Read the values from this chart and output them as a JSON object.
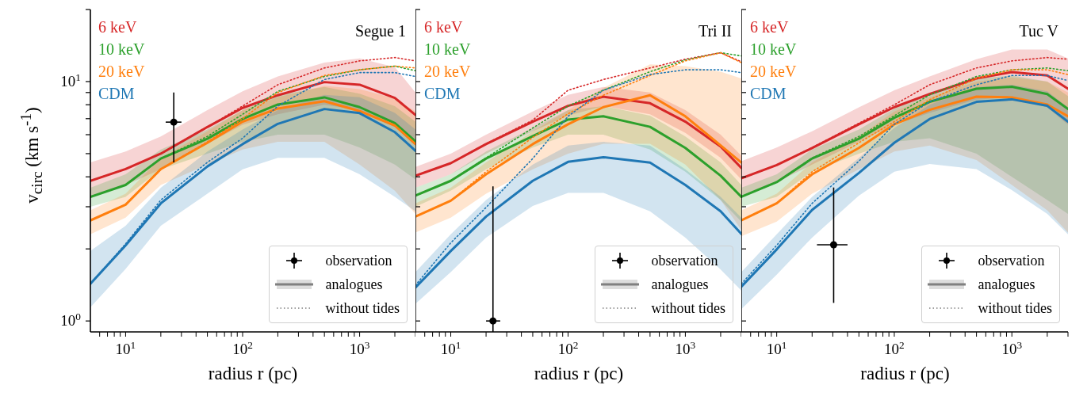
{
  "chart_data": [
    {
      "type": "line",
      "title": "Segue 1",
      "xlabel": "radius r (pc)",
      "ylabel": "v$_{circ}$ (km s$^{-1}$)",
      "log": "xy",
      "legend": "bottom right",
      "annotations": [
        "analogues",
        "without tides"
      ],
      "xlim": [
        5,
        3000
      ],
      "ylim": [
        0.9,
        20
      ],
      "xticks": [
        {
          "value": 6,
          "label": null
        },
        {
          "value": 7,
          "label": null
        },
        {
          "value": 8,
          "label": null
        },
        {
          "value": 9,
          "label": null
        },
        {
          "value": 10,
          "label": "10$^{1}$"
        },
        {
          "value": 20,
          "label": null
        },
        {
          "value": 30,
          "label": null
        },
        {
          "value": 40,
          "label": null
        },
        {
          "value": 50,
          "label": null
        },
        {
          "value": 60,
          "label": null
        },
        {
          "value": 70,
          "label": null
        },
        {
          "value": 80,
          "label": null
        },
        {
          "value": 90,
          "label": null
        },
        {
          "value": 100,
          "label": "10$^{2}$"
        },
        {
          "value": 200,
          "label": null
        },
        {
          "value": 300,
          "label": null
        },
        {
          "value": 400,
          "label": null
        },
        {
          "value": 500,
          "label": null
        },
        {
          "value": 600,
          "label": null
        },
        {
          "value": 700,
          "label": null
        },
        {
          "value": 800,
          "label": null
        },
        {
          "value": 900,
          "label": null
        },
        {
          "value": 1000,
          "label": "10$^{3}$"
        },
        {
          "value": 2000,
          "label": null
        },
        {
          "value": 3000,
          "label": null
        }
      ],
      "yticks": [
        {
          "value": 1,
          "label": "10$^{0}$"
        },
        {
          "value": 2,
          "label": null
        },
        {
          "value": 3,
          "label": null
        },
        {
          "value": 4,
          "label": null
        },
        {
          "value": 5,
          "label": null
        },
        {
          "value": 6,
          "label": null
        },
        {
          "value": 7,
          "label": null
        },
        {
          "value": 8,
          "label": null
        },
        {
          "value": 9,
          "label": null
        },
        {
          "value": 10,
          "label": "10$^{1}$"
        },
        {
          "value": 20,
          "label": null
        }
      ],
      "x": [
        5,
        10,
        20,
        50,
        100,
        200,
        500,
        1000,
        2000,
        3000
      ],
      "series": [
        {
          "name": "6 keV",
          "color": "#d62728",
          "values": [
            3.85,
            4.31,
            5.0,
            6.46,
            7.76,
            8.77,
            9.95,
            9.7,
            8.55,
            7.25
          ],
          "lower": [
            3.3,
            3.7,
            4.3,
            5.5,
            6.6,
            7.3,
            8.0,
            7.6,
            6.5,
            5.4
          ],
          "upper": [
            4.6,
            5.1,
            5.9,
            7.6,
            9.1,
            10.5,
            12.0,
            12.5,
            11.5,
            9.0
          ]
        },
        {
          "name": "10 keV",
          "color": "#2ca02c",
          "values": [
            3.3,
            3.7,
            4.77,
            5.77,
            6.98,
            8.02,
            8.59,
            7.82,
            6.71,
            5.62
          ],
          "lower": [
            3.0,
            3.3,
            4.3,
            5.0,
            5.6,
            6.0,
            6.0,
            5.3,
            4.5,
            3.9
          ],
          "upper": [
            3.6,
            4.1,
            5.2,
            6.3,
            7.6,
            8.8,
            9.5,
            8.9,
            7.9,
            6.8
          ]
        },
        {
          "name": "20 keV",
          "color": "#ff7f0e",
          "values": [
            2.63,
            3.06,
            4.31,
            5.55,
            6.8,
            7.72,
            8.28,
            7.53,
            6.55,
            5.48
          ],
          "lower": [
            2.3,
            2.7,
            3.7,
            4.5,
            5.2,
            5.6,
            5.6,
            4.5,
            3.5,
            2.8
          ],
          "upper": [
            2.9,
            3.4,
            4.8,
            6.2,
            7.6,
            8.6,
            9.6,
            9.3,
            8.5,
            7.5
          ]
        },
        {
          "name": "CDM",
          "color": "#1f77b4",
          "values": [
            1.43,
            2.07,
            3.1,
            4.42,
            5.48,
            6.66,
            7.68,
            7.38,
            6.15,
            5.14
          ],
          "lower": [
            1.14,
            1.65,
            2.5,
            3.4,
            4.3,
            4.8,
            4.8,
            4.1,
            3.3,
            2.87
          ],
          "upper": [
            1.96,
            2.5,
            3.6,
            5.1,
            6.3,
            7.6,
            8.8,
            8.6,
            7.4,
            6.3
          ]
        },
        {
          "line_style": "dotted",
          "color": "#d62728",
          "values": [
            3.85,
            4.31,
            5.0,
            6.46,
            7.9,
            9.7,
            11.4,
            12.2,
            12.6,
            12.2
          ]
        },
        {
          "line_style": "dotted",
          "color": "#2ca02c",
          "values": [
            3.3,
            3.7,
            4.77,
            5.9,
            7.3,
            9.1,
            10.5,
            11.2,
            11.6,
            11.1
          ]
        },
        {
          "line_style": "dotted",
          "color": "#ff7f0e",
          "values": [
            2.63,
            3.06,
            4.31,
            5.6,
            7.0,
            9.0,
            10.6,
            11.2,
            11.6,
            11.4
          ]
        },
        {
          "line_style": "dotted",
          "color": "#1f77b4",
          "values": [
            1.43,
            2.1,
            3.2,
            4.6,
            5.8,
            7.9,
            10.2,
            10.9,
            10.9,
            10.5
          ]
        },
        {
          "type": "scatter",
          "name": "observation",
          "color": "#000000",
          "marker": "circle",
          "x": [
            25.8
          ],
          "values": [
            6.77
          ],
          "errors": [
            [
              4.6,
              9.0
            ]
          ],
          "xerrors": [
            [
              22,
              30
            ]
          ]
        }
      ]
    },
    {
      "type": "line",
      "title": "Tri II",
      "xlabel": "radius r (pc)",
      "log": "xy",
      "legend": "bottom right",
      "tick_labels": "x",
      "annotations": [
        "analogues",
        "without tides"
      ],
      "xlim": [
        5,
        3000
      ],
      "ylim": [
        0.9,
        20
      ],
      "xticks": [
        {
          "value": 6,
          "label": null
        },
        {
          "value": 7,
          "label": null
        },
        {
          "value": 8,
          "label": null
        },
        {
          "value": 9,
          "label": null
        },
        {
          "value": 10,
          "label": "10$^{1}$"
        },
        {
          "value": 20,
          "label": null
        },
        {
          "value": 30,
          "label": null
        },
        {
          "value": 40,
          "label": null
        },
        {
          "value": 50,
          "label": null
        },
        {
          "value": 60,
          "label": null
        },
        {
          "value": 70,
          "label": null
        },
        {
          "value": 80,
          "label": null
        },
        {
          "value": 90,
          "label": null
        },
        {
          "value": 100,
          "label": "10$^{2}$"
        },
        {
          "value": 200,
          "label": null
        },
        {
          "value": 300,
          "label": null
        },
        {
          "value": 400,
          "label": null
        },
        {
          "value": 500,
          "label": null
        },
        {
          "value": 600,
          "label": null
        },
        {
          "value": 700,
          "label": null
        },
        {
          "value": 800,
          "label": null
        },
        {
          "value": 900,
          "label": null
        },
        {
          "value": 1000,
          "label": "10$^{3}$"
        },
        {
          "value": 2000,
          "label": null
        },
        {
          "value": 3000,
          "label": null
        }
      ],
      "yticks": [
        {
          "value": 1,
          "label": null
        },
        {
          "value": 2,
          "label": null
        },
        {
          "value": 3,
          "label": null
        },
        {
          "value": 4,
          "label": null
        },
        {
          "value": 5,
          "label": null
        },
        {
          "value": 6,
          "label": null
        },
        {
          "value": 7,
          "label": null
        },
        {
          "value": 8,
          "label": null
        },
        {
          "value": 9,
          "label": null
        },
        {
          "value": 10,
          "label": null
        },
        {
          "value": 20,
          "label": null
        }
      ],
      "x": [
        5,
        10,
        20,
        50,
        100,
        200,
        500,
        1000,
        2000,
        3000
      ],
      "series": [
        {
          "name": "6 keV",
          "color": "#d62728",
          "values": [
            4.04,
            4.56,
            5.48,
            6.8,
            7.92,
            8.65,
            8.12,
            6.8,
            5.35,
            4.36
          ],
          "lower": [
            3.6,
            4.1,
            5.0,
            6.2,
            7.2,
            7.9,
            7.3,
            6.1,
            4.8,
            3.9
          ],
          "upper": [
            4.4,
            5.0,
            6.0,
            7.5,
            8.8,
            9.5,
            9.0,
            7.6,
            6.0,
            4.9
          ]
        },
        {
          "name": "10 keV",
          "color": "#2ca02c",
          "values": [
            3.34,
            3.85,
            4.77,
            5.92,
            6.94,
            7.16,
            6.47,
            5.28,
            4.04,
            3.3
          ],
          "lower": [
            3.0,
            3.5,
            4.3,
            5.3,
            6.0,
            6.0,
            5.2,
            4.2,
            3.2,
            2.6
          ],
          "upper": [
            3.6,
            4.1,
            5.1,
            6.4,
            7.6,
            7.9,
            7.2,
            5.9,
            4.6,
            3.7
          ]
        },
        {
          "name": "20 keV",
          "color": "#ff7f0e",
          "values": [
            2.73,
            3.18,
            4.1,
            5.48,
            6.63,
            7.82,
            8.77,
            7.16,
            5.41,
            4.59
          ],
          "lower": [
            2.34,
            2.7,
            3.4,
            4.3,
            5.0,
            5.5,
            5.5,
            4.5,
            3.2,
            2.4
          ],
          "upper": [
            3.1,
            3.6,
            4.6,
            6.2,
            7.6,
            9.4,
            11.8,
            11.6,
            11.0,
            10.3
          ]
        },
        {
          "name": "CDM",
          "color": "#1f77b4",
          "values": [
            1.38,
            1.96,
            2.73,
            3.85,
            4.62,
            4.83,
            4.59,
            3.7,
            2.87,
            2.31
          ],
          "lower": [
            1.18,
            1.6,
            2.23,
            3.02,
            3.43,
            3.43,
            2.87,
            2.23,
            1.64,
            1.34
          ],
          "upper": [
            1.6,
            2.3,
            3.2,
            4.5,
            5.4,
            5.6,
            5.4,
            4.3,
            3.3,
            2.7
          ]
        },
        {
          "line_style": "dotted",
          "color": "#d62728",
          "values": [
            4.04,
            4.56,
            5.5,
            6.9,
            9.2,
            10.2,
            11.4,
            12.4,
            13.2,
            12.1
          ]
        },
        {
          "line_style": "dotted",
          "color": "#2ca02c",
          "values": [
            3.34,
            3.85,
            4.8,
            6.4,
            7.9,
            9.2,
            11.0,
            12.3,
            13.2,
            12.8
          ]
        },
        {
          "line_style": "dotted",
          "color": "#ff7f0e",
          "values": [
            2.73,
            3.18,
            4.2,
            5.84,
            7.34,
            8.77,
            10.6,
            12.2,
            13.2,
            12.0
          ]
        },
        {
          "line_style": "dotted",
          "color": "#1f77b4",
          "values": [
            1.41,
            2.12,
            2.98,
            4.77,
            7.16,
            9.2,
            10.7,
            11.2,
            11.2,
            10.9
          ]
        },
        {
          "type": "scatter",
          "name": "observation",
          "color": "#000000",
          "marker": "circle",
          "x": [
            22.9
          ],
          "values": [
            1.0
          ],
          "errors": [
            [
              0.9,
              3.65
            ]
          ],
          "xerrors": [
            [
              20,
              26.4
            ]
          ]
        }
      ]
    },
    {
      "type": "line",
      "title": "Tuc V",
      "xlabel": "radius r (pc)",
      "log": "xy",
      "legend": "bottom right",
      "tick_labels": "x",
      "annotations": [
        "analogues",
        "without tides"
      ],
      "xlim": [
        5,
        3000
      ],
      "ylim": [
        0.9,
        20
      ],
      "xticks": [
        {
          "value": 6,
          "label": null
        },
        {
          "value": 7,
          "label": null
        },
        {
          "value": 8,
          "label": null
        },
        {
          "value": 9,
          "label": null
        },
        {
          "value": 10,
          "label": "10$^{1}$"
        },
        {
          "value": 20,
          "label": null
        },
        {
          "value": 30,
          "label": null
        },
        {
          "value": 40,
          "label": null
        },
        {
          "value": 50,
          "label": null
        },
        {
          "value": 60,
          "label": null
        },
        {
          "value": 70,
          "label": null
        },
        {
          "value": 80,
          "label": null
        },
        {
          "value": 90,
          "label": null
        },
        {
          "value": 100,
          "label": "10$^{2}$"
        },
        {
          "value": 200,
          "label": null
        },
        {
          "value": 300,
          "label": null
        },
        {
          "value": 400,
          "label": null
        },
        {
          "value": 500,
          "label": null
        },
        {
          "value": 600,
          "label": null
        },
        {
          "value": 700,
          "label": null
        },
        {
          "value": 800,
          "label": null
        },
        {
          "value": 900,
          "label": null
        },
        {
          "value": 1000,
          "label": "10$^{3}$"
        },
        {
          "value": 2000,
          "label": null
        },
        {
          "value": 3000,
          "label": null
        }
      ],
      "yticks": [
        {
          "value": 1,
          "label": null
        },
        {
          "value": 2,
          "label": null
        },
        {
          "value": 3,
          "label": null
        },
        {
          "value": 4,
          "label": null
        },
        {
          "value": 5,
          "label": null
        },
        {
          "value": 6,
          "label": null
        },
        {
          "value": 7,
          "label": null
        },
        {
          "value": 8,
          "label": null
        },
        {
          "value": 9,
          "label": null
        },
        {
          "value": 10,
          "label": null
        },
        {
          "value": 20,
          "label": null
        }
      ],
      "x": [
        5,
        10,
        20,
        50,
        100,
        200,
        500,
        1000,
        2000,
        3000
      ],
      "series": [
        {
          "name": "6 keV",
          "color": "#d62728",
          "values": [
            3.94,
            4.48,
            5.28,
            6.63,
            7.82,
            8.87,
            10.3,
            10.96,
            10.6,
            9.34
          ],
          "lower": [
            3.35,
            3.8,
            4.5,
            5.6,
            6.6,
            7.4,
            8.4,
            8.6,
            7.8,
            6.6
          ],
          "upper": [
            4.65,
            5.3,
            6.2,
            7.8,
            9.2,
            10.5,
            12.4,
            13.6,
            13.6,
            12.5
          ]
        },
        {
          "name": "10 keV",
          "color": "#2ca02c",
          "values": [
            3.3,
            3.8,
            4.77,
            5.77,
            7.06,
            8.23,
            9.34,
            9.51,
            8.87,
            7.68
          ],
          "lower": [
            3.0,
            3.3,
            4.2,
            5.0,
            5.6,
            5.8,
            5.0,
            4.0,
            3.2,
            2.8
          ],
          "upper": [
            3.6,
            4.1,
            5.2,
            6.3,
            7.7,
            9.0,
            10.3,
            10.6,
            10.0,
            8.7
          ]
        },
        {
          "name": "20 keV",
          "color": "#ff7f0e",
          "values": [
            2.63,
            3.1,
            4.1,
            5.28,
            6.63,
            7.62,
            8.65,
            8.59,
            8.02,
            7.16
          ],
          "lower": [
            2.26,
            2.6,
            3.4,
            4.3,
            5.1,
            5.4,
            4.7,
            3.7,
            2.9,
            2.34
          ],
          "upper": [
            2.9,
            3.4,
            4.6,
            5.9,
            7.5,
            8.6,
            10.0,
            10.4,
            10.0,
            9.0
          ]
        },
        {
          "name": "CDM",
          "color": "#1f77b4",
          "values": [
            1.39,
            1.99,
            2.91,
            4.15,
            5.55,
            6.98,
            8.23,
            8.43,
            7.92,
            6.8
          ],
          "lower": [
            1.12,
            1.56,
            2.23,
            3.34,
            4.2,
            4.53,
            4.31,
            3.52,
            2.8,
            2.3
          ],
          "upper": [
            1.6,
            2.3,
            3.3,
            4.8,
            6.4,
            8.0,
            9.5,
            9.7,
            9.1,
            7.8
          ]
        },
        {
          "line_style": "dotted",
          "color": "#d62728",
          "values": [
            3.94,
            4.48,
            5.3,
            6.7,
            8.0,
            9.7,
            11.4,
            12.2,
            12.6,
            12.4
          ]
        },
        {
          "line_style": "dotted",
          "color": "#2ca02c",
          "values": [
            3.3,
            3.8,
            4.8,
            5.9,
            7.2,
            8.8,
            10.5,
            11.2,
            11.4,
            11.1
          ]
        },
        {
          "line_style": "dotted",
          "color": "#ff7f0e",
          "values": [
            2.63,
            3.1,
            4.2,
            5.55,
            6.8,
            8.4,
            10.3,
            11.2,
            11.2,
            10.7
          ]
        },
        {
          "line_style": "dotted",
          "color": "#1f77b4",
          "values": [
            1.43,
            2.07,
            3.1,
            4.65,
            6.63,
            8.23,
            9.7,
            10.6,
            10.6,
            10.1
          ]
        },
        {
          "type": "scatter",
          "name": "observation",
          "color": "#000000",
          "marker": "circle",
          "x": [
            30.5
          ],
          "values": [
            2.08
          ],
          "errors": [
            [
              1.19,
              3.61
            ]
          ],
          "xerrors": [
            [
              22,
              40
            ]
          ]
        }
      ]
    }
  ]
}
